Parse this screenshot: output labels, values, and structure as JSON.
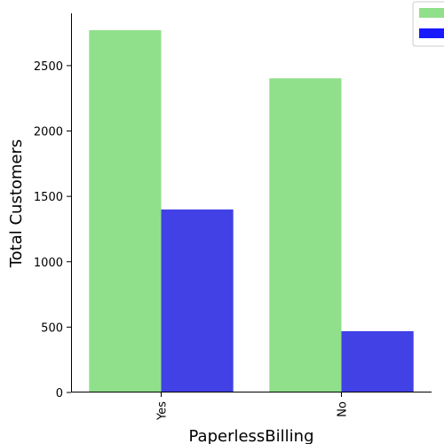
{
  "chart_data": {
    "type": "bar",
    "categories": [
      "Yes",
      "No"
    ],
    "series": [
      {
        "values": [
          2771,
          2403
        ],
        "color": "#90e08b"
      },
      {
        "values": [
          1400,
          469
        ],
        "color": "#4141e5"
      }
    ],
    "xlabel": "PaperlessBilling",
    "ylabel": "Total Customers",
    "ylim": [
      0,
      2900
    ],
    "yticks": [
      0,
      500,
      1000,
      1500,
      2000,
      2500
    ],
    "grid": false,
    "legend_position": "top-right",
    "legend_swatch_colors": [
      "#90e08b",
      "#1a1aff"
    ]
  }
}
